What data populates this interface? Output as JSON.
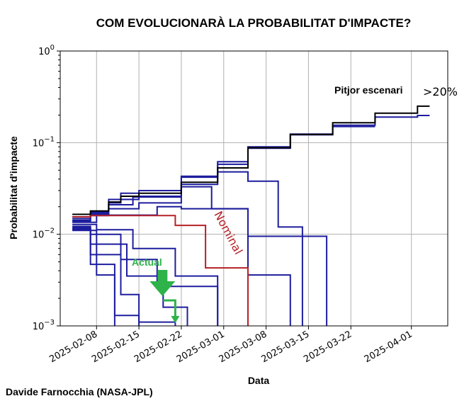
{
  "chart_data": {
    "type": "line",
    "title": "COM EVOLUCIONARÀ LA PROBABILITAT D'IMPACTE?",
    "xlabel": "Data",
    "ylabel": "Probabilitat d'impacte",
    "yscale": "log",
    "ylim": [
      0.001,
      1
    ],
    "xlim": [
      "2025-02-02",
      "2025-04-07"
    ],
    "grid": true,
    "x_ticks": [
      "2025-02-08",
      "2025-02-15",
      "2025-02-22",
      "2025-03-01",
      "2025-03-08",
      "2025-03-15",
      "2025-03-22",
      "2025-04-01"
    ],
    "y_ticks": [
      {
        "value": 0.001,
        "base": "10",
        "exp": "−3"
      },
      {
        "value": 0.01,
        "base": "10",
        "exp": "−2"
      },
      {
        "value": 0.1,
        "base": "10",
        "exp": "−1"
      },
      {
        "value": 1,
        "base": "10",
        "exp": "0"
      }
    ],
    "colors": {
      "worst": "#000000",
      "nominal": "#b52126",
      "scenario": "#1d1d9e",
      "actual": "#2db34a",
      "grid": "#b0b0b0"
    },
    "annotations": {
      "worst_case": "Pitjor escenari",
      "worst_value": ">20%",
      "nominal": "Nominal",
      "actual": "Actual"
    },
    "actual_marker": {
      "date": "2025-02-19",
      "down_to": "2025-02-21"
    },
    "credit": "Davide Farnocchia (NASA-JPL)",
    "series": [
      {
        "role": "worst",
        "points": [
          [
            "2025-02-04",
            0.0165
          ],
          [
            "2025-02-07",
            0.0165
          ],
          [
            "2025-02-07",
            0.018
          ],
          [
            "2025-02-10",
            0.018
          ],
          [
            "2025-02-10",
            0.0225
          ],
          [
            "2025-02-12",
            0.0225
          ],
          [
            "2025-02-12",
            0.026
          ],
          [
            "2025-02-15",
            0.026
          ],
          [
            "2025-02-15",
            0.028
          ],
          [
            "2025-02-22",
            0.028
          ],
          [
            "2025-02-22",
            0.037
          ],
          [
            "2025-02-28",
            0.037
          ],
          [
            "2025-02-28",
            0.053
          ],
          [
            "2025-03-05",
            0.053
          ],
          [
            "2025-03-05",
            0.088
          ],
          [
            "2025-03-12",
            0.088
          ],
          [
            "2025-03-12",
            0.123
          ],
          [
            "2025-03-19",
            0.123
          ],
          [
            "2025-03-19",
            0.165
          ],
          [
            "2025-03-26",
            0.165
          ],
          [
            "2025-03-26",
            0.21
          ],
          [
            "2025-04-02",
            0.21
          ],
          [
            "2025-04-02",
            0.25
          ],
          [
            "2025-04-04",
            0.25
          ]
        ]
      },
      {
        "role": "scenario",
        "points": [
          [
            "2025-02-04",
            0.0155
          ],
          [
            "2025-02-07",
            0.0155
          ],
          [
            "2025-02-07",
            0.0175
          ],
          [
            "2025-02-10",
            0.0175
          ],
          [
            "2025-02-10",
            0.024
          ],
          [
            "2025-02-12",
            0.024
          ],
          [
            "2025-02-12",
            0.028
          ],
          [
            "2025-02-15",
            0.028
          ],
          [
            "2025-02-15",
            0.03
          ],
          [
            "2025-02-22",
            0.03
          ],
          [
            "2025-02-22",
            0.043
          ],
          [
            "2025-02-28",
            0.043
          ],
          [
            "2025-02-28",
            0.062
          ],
          [
            "2025-03-05",
            0.062
          ],
          [
            "2025-03-05",
            0.09
          ],
          [
            "2025-03-12",
            0.09
          ],
          [
            "2025-03-12",
            0.122
          ],
          [
            "2025-03-19",
            0.122
          ],
          [
            "2025-03-19",
            0.155
          ],
          [
            "2025-03-26",
            0.155
          ],
          [
            "2025-03-26",
            0.19
          ],
          [
            "2025-04-02",
            0.19
          ],
          [
            "2025-04-02",
            0.198
          ],
          [
            "2025-04-04",
            0.198
          ]
        ]
      },
      {
        "role": "scenario",
        "points": [
          [
            "2025-02-04",
            0.0148
          ],
          [
            "2025-02-07",
            0.0148
          ],
          [
            "2025-02-07",
            0.017
          ],
          [
            "2025-02-10",
            0.017
          ],
          [
            "2025-02-10",
            0.022
          ],
          [
            "2025-02-12",
            0.022
          ],
          [
            "2025-02-12",
            0.024
          ],
          [
            "2025-02-15",
            0.024
          ],
          [
            "2025-02-15",
            0.026
          ],
          [
            "2025-02-22",
            0.026
          ],
          [
            "2025-02-22",
            0.042
          ],
          [
            "2025-02-28",
            0.042
          ],
          [
            "2025-02-28",
            0.058
          ],
          [
            "2025-03-05",
            0.058
          ],
          [
            "2025-03-05",
            0.087
          ],
          [
            "2025-03-12",
            0.087
          ],
          [
            "2025-03-12",
            0.124
          ],
          [
            "2025-03-19",
            0.124
          ],
          [
            "2025-03-19",
            0.15
          ],
          [
            "2025-03-26",
            0.15
          ],
          [
            "2025-03-26",
            0.15
          ],
          [
            "2025-03-26",
            0.15
          ]
        ]
      },
      {
        "role": "scenario",
        "points": [
          [
            "2025-02-04",
            0.0142
          ],
          [
            "2025-02-07",
            0.0142
          ],
          [
            "2025-02-07",
            0.0165
          ],
          [
            "2025-02-10",
            0.0165
          ],
          [
            "2025-02-10",
            0.021
          ],
          [
            "2025-02-14",
            0.021
          ],
          [
            "2025-02-14",
            0.0255
          ],
          [
            "2025-02-22",
            0.0255
          ],
          [
            "2025-02-22",
            0.035
          ],
          [
            "2025-02-28",
            0.035
          ],
          [
            "2025-02-28",
            0.048
          ],
          [
            "2025-03-05",
            0.048
          ],
          [
            "2025-03-05",
            0.038
          ],
          [
            "2025-03-10",
            0.038
          ],
          [
            "2025-03-10",
            0.012
          ],
          [
            "2025-03-14",
            0.012
          ],
          [
            "2025-03-14",
            0.001
          ]
        ]
      },
      {
        "role": "scenario",
        "points": [
          [
            "2025-02-04",
            0.0138
          ],
          [
            "2025-02-07",
            0.0138
          ],
          [
            "2025-02-07",
            0.016
          ],
          [
            "2025-02-10",
            0.016
          ],
          [
            "2025-02-10",
            0.019
          ],
          [
            "2025-02-15",
            0.019
          ],
          [
            "2025-02-15",
            0.022
          ],
          [
            "2025-02-22",
            0.022
          ],
          [
            "2025-02-22",
            0.033
          ],
          [
            "2025-02-27",
            0.033
          ],
          [
            "2025-02-27",
            0.019
          ],
          [
            "2025-03-05",
            0.019
          ],
          [
            "2025-03-05",
            0.0095
          ],
          [
            "2025-03-18",
            0.0095
          ],
          [
            "2025-03-18",
            0.001
          ]
        ]
      },
      {
        "role": "scenario",
        "points": [
          [
            "2025-02-04",
            0.0135
          ],
          [
            "2025-02-08",
            0.0135
          ],
          [
            "2025-02-08",
            0.0162
          ],
          [
            "2025-02-18",
            0.0162
          ],
          [
            "2025-02-18",
            0.02
          ],
          [
            "2025-02-22",
            0.02
          ],
          [
            "2025-02-22",
            0.019
          ],
          [
            "2025-03-05",
            0.019
          ],
          [
            "2025-03-05",
            0.0036
          ],
          [
            "2025-03-12",
            0.0036
          ],
          [
            "2025-03-12",
            0.001
          ]
        ]
      },
      {
        "role": "nominal",
        "points": [
          [
            "2025-02-04",
            0.0155
          ],
          [
            "2025-02-07",
            0.0155
          ],
          [
            "2025-02-07",
            0.016
          ],
          [
            "2025-02-21",
            0.016
          ],
          [
            "2025-02-21",
            0.0125
          ],
          [
            "2025-02-26",
            0.0125
          ],
          [
            "2025-02-26",
            0.0043
          ],
          [
            "2025-03-05",
            0.0043
          ],
          [
            "2025-03-05",
            0.001
          ]
        ]
      },
      {
        "role": "scenario",
        "points": [
          [
            "2025-02-04",
            0.0128
          ],
          [
            "2025-02-08",
            0.0128
          ],
          [
            "2025-02-08",
            0.0112
          ],
          [
            "2025-02-14",
            0.0112
          ],
          [
            "2025-02-14",
            0.007
          ],
          [
            "2025-02-21",
            0.007
          ],
          [
            "2025-02-21",
            0.0035
          ],
          [
            "2025-02-28",
            0.0035
          ],
          [
            "2025-02-28",
            0.001
          ]
        ]
      },
      {
        "role": "scenario",
        "points": [
          [
            "2025-02-04",
            0.0122
          ],
          [
            "2025-02-07",
            0.0122
          ],
          [
            "2025-02-07",
            0.01
          ],
          [
            "2025-02-12",
            0.01
          ],
          [
            "2025-02-12",
            0.0053
          ],
          [
            "2025-02-18",
            0.0053
          ],
          [
            "2025-02-18",
            0.0027
          ],
          [
            "2025-02-28",
            0.0027
          ],
          [
            "2025-02-28",
            0.001
          ]
        ]
      },
      {
        "role": "scenario",
        "points": [
          [
            "2025-02-04",
            0.0118
          ],
          [
            "2025-02-07",
            0.0118
          ],
          [
            "2025-02-07",
            0.0078
          ],
          [
            "2025-02-13",
            0.0078
          ],
          [
            "2025-02-13",
            0.0035
          ],
          [
            "2025-02-19",
            0.0035
          ],
          [
            "2025-02-19",
            0.0016
          ],
          [
            "2025-02-23",
            0.0016
          ],
          [
            "2025-02-23",
            0.001
          ]
        ]
      },
      {
        "role": "scenario",
        "points": [
          [
            "2025-02-04",
            0.0115
          ],
          [
            "2025-02-07",
            0.0115
          ],
          [
            "2025-02-07",
            0.006
          ],
          [
            "2025-02-12",
            0.006
          ],
          [
            "2025-02-12",
            0.0022
          ],
          [
            "2025-02-15",
            0.0022
          ],
          [
            "2025-02-15",
            0.0011
          ],
          [
            "2025-02-21",
            0.0011
          ],
          [
            "2025-02-21",
            0.001
          ]
        ]
      },
      {
        "role": "scenario",
        "points": [
          [
            "2025-02-04",
            0.0112
          ],
          [
            "2025-02-07",
            0.0112
          ],
          [
            "2025-02-07",
            0.0047
          ],
          [
            "2025-02-11",
            0.0047
          ],
          [
            "2025-02-11",
            0.0013
          ],
          [
            "2025-02-15",
            0.0013
          ],
          [
            "2025-02-15",
            0.001
          ]
        ]
      },
      {
        "role": "scenario",
        "points": [
          [
            "2025-02-04",
            0.011
          ],
          [
            "2025-02-08",
            0.011
          ],
          [
            "2025-02-08",
            0.0036
          ],
          [
            "2025-02-11",
            0.0036
          ],
          [
            "2025-02-11",
            0.001
          ]
        ]
      }
    ]
  }
}
